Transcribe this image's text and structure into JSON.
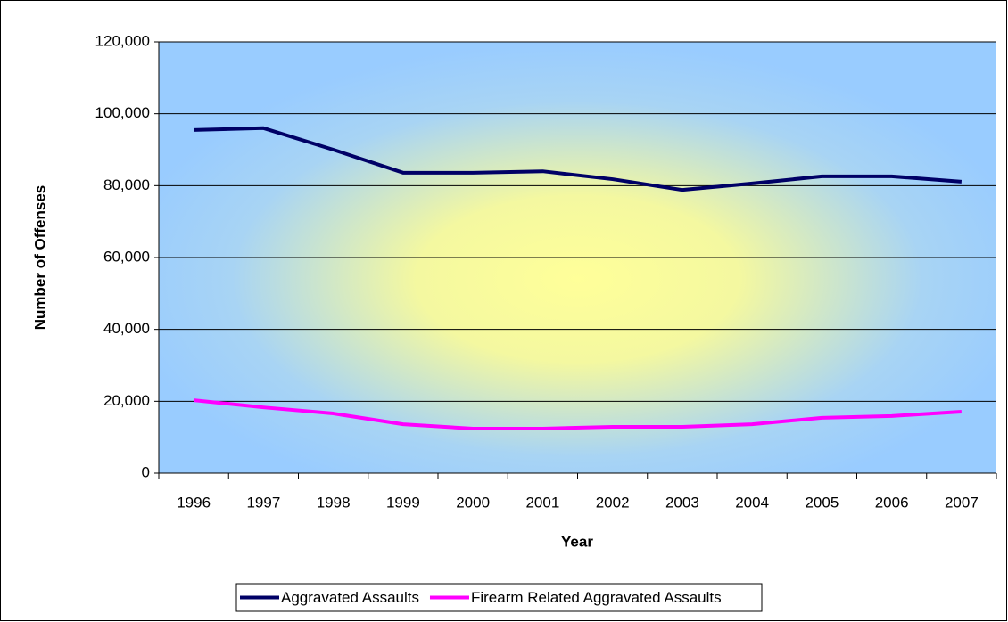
{
  "chart_data": {
    "type": "line",
    "x_label": "Year",
    "y_label": "Number of Offenses",
    "categories": [
      "1996",
      "1997",
      "1998",
      "1999",
      "2000",
      "2001",
      "2002",
      "2003",
      "2004",
      "2005",
      "2006",
      "2007"
    ],
    "series": [
      {
        "name": "Aggravated Assaults",
        "color": "#000066",
        "values": [
          95500,
          96000,
          90000,
          83600,
          83600,
          84000,
          81800,
          78800,
          80600,
          82600,
          82600,
          81100
        ]
      },
      {
        "name": "Firearm Related Aggravated Assaults",
        "color": "#ff00ff",
        "values": [
          20300,
          18300,
          16600,
          13600,
          12400,
          12400,
          12900,
          12900,
          13600,
          15400,
          15900,
          17100
        ]
      }
    ],
    "ylim": [
      0,
      120000
    ],
    "yticks": [
      0,
      {
        "value": 20000,
        "label": "20,000"
      },
      {
        "value": 40000,
        "label": "40,000"
      },
      {
        "value": 60000,
        "label": "60,000"
      },
      {
        "value": 80000,
        "label": "80,000"
      },
      {
        "value": 100000,
        "label": "100,000"
      },
      {
        "value": 120000,
        "label": "120,000"
      }
    ],
    "grid": true,
    "legend": "bottom"
  }
}
